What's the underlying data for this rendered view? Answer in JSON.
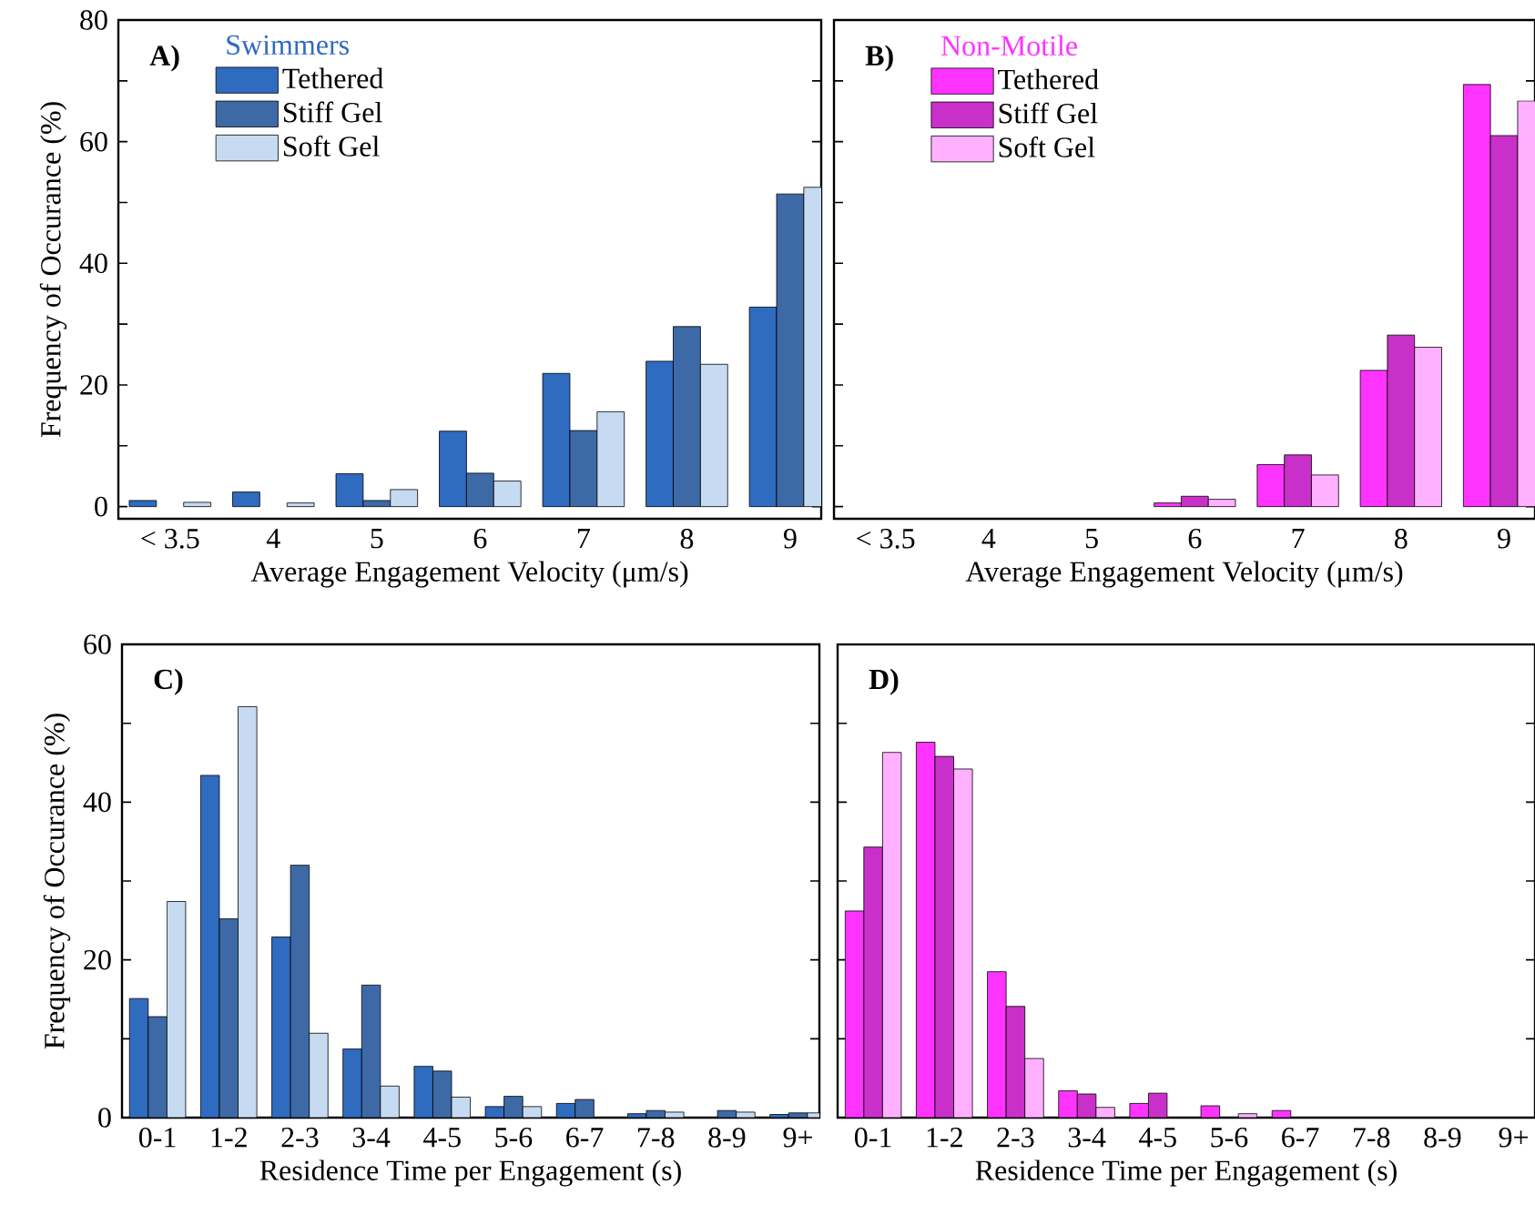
{
  "chart_data": [
    {
      "type": "bar",
      "title": "A)",
      "legend_title": "Swimmers",
      "legend": "top left",
      "xlabel": "Average Engagement Velocity (μm/s)",
      "ylabel": "Frequency of Occurance (%)",
      "categories": [
        "< 3.5",
        "4",
        "5",
        "6",
        "7",
        "8",
        "9"
      ],
      "ylim": [
        -2,
        80
      ],
      "yticks": [
        0,
        {
          "value": 10,
          "label": null
        },
        20,
        {
          "value": 30,
          "label": null
        },
        40,
        {
          "value": 50,
          "label": null
        },
        60,
        {
          "value": 70,
          "label": null
        },
        80
      ],
      "series": [
        {
          "name": "Tethered",
          "color": "#2f6bbf",
          "values": [
            1.0,
            2.4,
            5.4,
            12.4,
            21.9,
            23.9,
            32.8
          ]
        },
        {
          "name": "Stiff Gel",
          "color": "#3d6aa6",
          "values": [
            0,
            0,
            1.0,
            5.5,
            12.5,
            29.6,
            51.4
          ]
        },
        {
          "name": "Soft Gel",
          "color": "#c6daf2",
          "values": [
            0.7,
            0.6,
            2.8,
            4.2,
            15.6,
            23.4,
            52.5
          ]
        }
      ]
    },
    {
      "type": "bar",
      "title": "B)",
      "legend_title": "Non-Motile",
      "legend": "top left",
      "xlabel": "Average Engagement Velocity (μm/s)",
      "categories": [
        "< 3.5",
        "4",
        "5",
        "6",
        "7",
        "8",
        "9"
      ],
      "ylim": [
        -2,
        80
      ],
      "yticks": [
        0,
        10,
        20,
        30,
        40,
        50,
        60,
        70,
        80
      ],
      "tick_labels": "x",
      "series": [
        {
          "name": "Tethered",
          "color": "#ff33ff",
          "values": [
            0,
            0,
            0,
            0.6,
            6.9,
            22.4,
            69.4
          ]
        },
        {
          "name": "Stiff Gel",
          "color": "#c930c9",
          "values": [
            0,
            0,
            0,
            1.7,
            8.5,
            28.2,
            61.0
          ]
        },
        {
          "name": "Soft Gel",
          "color": "#ffb0ff",
          "values": [
            0,
            0,
            0,
            1.2,
            5.2,
            26.2,
            66.7
          ]
        }
      ]
    },
    {
      "type": "bar",
      "title": "C)",
      "xlabel": "Residence Time per Engagement (s)",
      "ylabel": "Frequency of Occurance (%)",
      "categories": [
        "0-1",
        "1-2",
        "2-3",
        "3-4",
        "4-5",
        "5-6",
        "6-7",
        "7-8",
        "8-9",
        "9+"
      ],
      "ylim": [
        0,
        60
      ],
      "yticks": [
        0,
        {
          "value": 10,
          "label": null
        },
        20,
        {
          "value": 30,
          "label": null
        },
        40,
        {
          "value": 50,
          "label": null
        },
        60
      ],
      "series": [
        {
          "color": "#2f6bbf",
          "values": [
            15.1,
            43.4,
            22.9,
            8.7,
            6.5,
            1.4,
            1.8,
            0.5,
            0,
            0.4
          ]
        },
        {
          "color": "#3d6aa6",
          "values": [
            12.8,
            25.2,
            32.0,
            16.8,
            5.9,
            2.7,
            2.3,
            0.9,
            0.9,
            0.6
          ]
        },
        {
          "color": "#c6daf2",
          "values": [
            27.4,
            52.1,
            10.7,
            4.0,
            2.6,
            1.4,
            0,
            0.7,
            0.7,
            0.6
          ]
        }
      ]
    },
    {
      "type": "bar",
      "title": "D)",
      "xlabel": "Residence Time per Engagement (s)",
      "categories": [
        "0-1",
        "1-2",
        "2-3",
        "3-4",
        "4-5",
        "5-6",
        "6-7",
        "7-8",
        "8-9",
        "9+"
      ],
      "ylim": [
        0,
        60
      ],
      "yticks": [
        0,
        10,
        20,
        30,
        40,
        50,
        60
      ],
      "tick_labels": "x",
      "series": [
        {
          "color": "#ff33ff",
          "values": [
            26.2,
            47.6,
            18.5,
            3.4,
            1.8,
            1.5,
            0.9,
            0,
            0,
            0
          ]
        },
        {
          "color": "#c930c9",
          "values": [
            34.3,
            45.8,
            14.1,
            3.0,
            3.1,
            0,
            0,
            0,
            0,
            0
          ]
        },
        {
          "color": "#ffb0ff",
          "values": [
            46.3,
            44.2,
            7.5,
            1.3,
            0,
            0.5,
            0,
            0,
            0,
            0
          ]
        }
      ]
    }
  ]
}
